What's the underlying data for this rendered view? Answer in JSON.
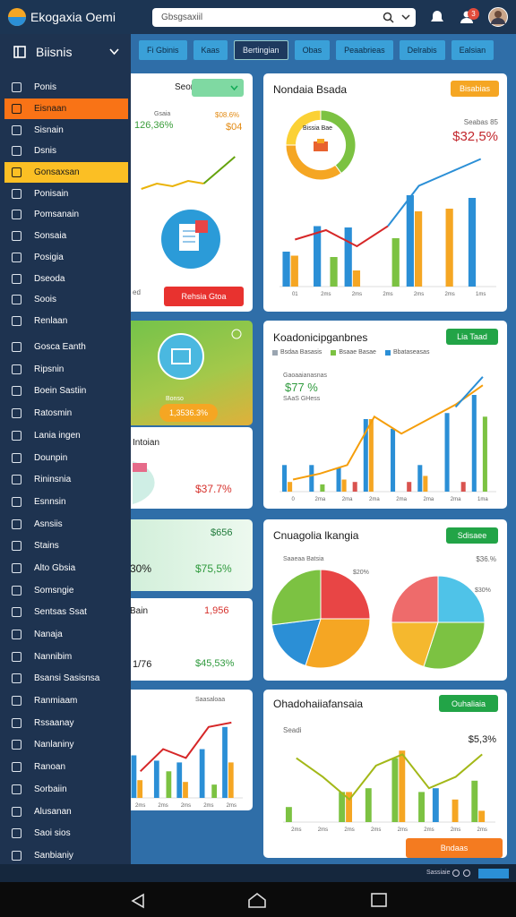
{
  "topbar": {
    "app_name": "Ekogaxia Oemi",
    "search_placeholder": "Gbsgsaxiil",
    "notification_count": 3
  },
  "sidebar": {
    "title": "Biisnis",
    "items": [
      {
        "label": "Ponis",
        "chevron": true
      },
      {
        "label": "Eisnaan",
        "chevron": false,
        "color": "#f97316"
      },
      {
        "label": "Sisnain",
        "chevron": true
      },
      {
        "label": "Dsnis",
        "chevron": false
      },
      {
        "label": "Gonsaxsan",
        "chevron": false,
        "color": "#fbbf24"
      },
      {
        "label": "Ponisain",
        "chevron": false
      },
      {
        "label": "Pomsanain",
        "chevron": false
      },
      {
        "label": "Sonsaia",
        "chevron": true
      },
      {
        "label": "Posigia",
        "chevron": true
      },
      {
        "label": "Dseoda",
        "chevron": false
      },
      {
        "label": "Soois",
        "chevron": true
      },
      {
        "label": "Renlaan",
        "chevron": true
      },
      {
        "label": "Gosca Eanth",
        "chevron": true
      },
      {
        "label": "Ripsnin",
        "chevron": true
      },
      {
        "label": "Boein Sastiin",
        "chevron": true
      },
      {
        "label": "Ratosmin",
        "chevron": false
      },
      {
        "label": "Lania ingen",
        "chevron": false
      },
      {
        "label": "Dounpin",
        "chevron": false
      },
      {
        "label": "Rininsnia",
        "chevron": false
      },
      {
        "label": "Esnnsin",
        "chevron": false
      },
      {
        "label": "Asnsiis",
        "chevron": false
      },
      {
        "label": "Stains",
        "chevron": false
      },
      {
        "label": "Alto Gbsia",
        "chevron": false
      },
      {
        "label": "Somsngie",
        "chevron": false
      },
      {
        "label": "Sentsas Ssat",
        "chevron": false
      },
      {
        "label": "Nanaja",
        "chevron": false
      },
      {
        "label": "Nannibim",
        "chevron": false
      },
      {
        "label": "Bsansi Sasisnsa",
        "chevron": false
      },
      {
        "label": "Ranmiaam",
        "chevron": false
      },
      {
        "label": "Rssaanay",
        "chevron": false
      },
      {
        "label": "Nanlaniny",
        "chevron": false
      },
      {
        "label": "Ranoan",
        "chevron": false
      },
      {
        "label": "Sorbaiin",
        "chevron": false
      },
      {
        "label": "Alusanan",
        "chevron": false
      },
      {
        "label": "Saoi sios",
        "chevron": false
      },
      {
        "label": "Sanbianiy",
        "chevron": false
      }
    ]
  },
  "tabs": [
    {
      "label": "Fi Gbinis",
      "active": false
    },
    {
      "label": "Kaas",
      "active": false
    },
    {
      "label": "Bertingian",
      "active": true
    },
    {
      "label": "Obas",
      "active": false
    },
    {
      "label": "Peaabrieas",
      "active": false
    },
    {
      "label": "Delrabis",
      "active": false
    },
    {
      "label": "Ealsian",
      "active": false
    }
  ],
  "left_cards": [
    {
      "title": "Seonsai",
      "label_a": "Gsaia",
      "value_a": "126,36%",
      "label_b": "$08.6%",
      "value_b": "$04",
      "note": "ed",
      "button": "Rehsia Gtoa",
      "chart": {
        "ylim": [
          0,
          100
        ],
        "lines": [
          {
            "color": "#eab308",
            "values": [
              20,
              30,
              25,
              35,
              30,
              null,
              null
            ]
          },
          {
            "color": "#65a30d",
            "values": [
              null,
              null,
              null,
              null,
              30,
              55,
              80
            ]
          }
        ]
      }
    },
    {
      "label": "Bonso",
      "value": "1,3536.3%"
    },
    {
      "title": "Intoian",
      "value": "$37.7%"
    },
    {
      "value_a": "$656",
      "value_b": "30%",
      "value_c": "$75,5%"
    },
    {
      "title": "Bain",
      "value_a": "1,956",
      "value_b": "1/76",
      "value_c": "$45,53%"
    },
    {
      "label": "Saasaloaa",
      "chart": {
        "ylim": [
          0,
          100
        ],
        "categories": [
          "2ms",
          "2ms",
          "2ms",
          "2ms",
          "2ms"
        ],
        "bars": [
          {
            "color": "#2b8fd6",
            "values": [
              48,
              42,
              40,
              55,
              80
            ]
          },
          {
            "color": "#f5a623",
            "values": [
              20,
              null,
              18,
              null,
              40
            ]
          },
          {
            "color": "#7cc242",
            "values": [
              null,
              30,
              null,
              15,
              null
            ]
          }
        ],
        "lines": [
          {
            "color": "#d62728",
            "values": [
              30,
              55,
              45,
              80,
              85
            ]
          }
        ]
      }
    }
  ],
  "right_cards": [
    {
      "title": "Nondaia Bsada",
      "button": "Bisabias",
      "donut_label": "Bissia Bae",
      "label": "Seabas 85",
      "value": "$32,5%",
      "donut": {
        "slices": [
          {
            "color": "#7cc242",
            "value": 40
          },
          {
            "color": "#f5a623",
            "value": 35
          },
          {
            "color": "#fbd135",
            "value": 25
          }
        ]
      },
      "chart": {
        "ylim": [
          0,
          100
        ],
        "categories": [
          "01",
          "2ms",
          "2ms",
          "2ms",
          "2ms",
          "2ms",
          "1ms"
        ],
        "bars": [
          {
            "color": "#2b8fd6",
            "values": [
              26,
              45,
              44,
              null,
              68,
              null,
              66
            ]
          },
          {
            "color": "#f5a623",
            "values": [
              23,
              null,
              12,
              null,
              56,
              58,
              null
            ]
          },
          {
            "color": "#7cc242",
            "values": [
              null,
              22,
              null,
              36,
              null,
              null,
              null
            ]
          }
        ],
        "lines": [
          {
            "color": "#d62728",
            "values": [
              35,
              42,
              30,
              45,
              null,
              null,
              null
            ]
          },
          {
            "color": "#2b8fd6",
            "values": [
              null,
              null,
              null,
              45,
              75,
              85,
              95
            ]
          }
        ]
      }
    },
    {
      "title": "Koadonicipganbnes",
      "button": "Lia Taad",
      "legend": [
        "Bsdaa Basasis",
        "Bsaae Basae",
        "Bbataseasas"
      ],
      "label_a": "Gaoaaianasnas",
      "value": "$77 %",
      "label_b": "SAaS GHess",
      "chart": {
        "ylim": [
          0,
          100
        ],
        "categories": [
          "0",
          "2ma",
          "2ma",
          "2ma",
          "2ma",
          "2ma",
          "2ma",
          "1ma"
        ],
        "bars": [
          {
            "color": "#2b8fd6",
            "values": [
              22,
              22,
              20,
              60,
              52,
              22,
              65,
              80
            ]
          },
          {
            "color": "#f5a623",
            "values": [
              8,
              null,
              10,
              60,
              null,
              13,
              null,
              null
            ]
          },
          {
            "color": "#7cc242",
            "values": [
              null,
              6,
              null,
              null,
              null,
              null,
              null,
              62
            ]
          },
          {
            "color": "#d9534f",
            "values": [
              null,
              null,
              8,
              null,
              8,
              null,
              8,
              null
            ]
          }
        ],
        "lines": [
          {
            "color": "#f59e0b",
            "values": [
              10,
              15,
              22,
              62,
              48,
              60,
              72,
              88
            ]
          },
          {
            "color": "#2b8fd6",
            "values": [
              null,
              null,
              null,
              null,
              null,
              null,
              70,
              95
            ]
          }
        ]
      }
    },
    {
      "title": "Cnuagolia lkangia",
      "button": "Sdisaee",
      "label": "Saaeaa Batsia",
      "value": "$36.%",
      "note_a": "$20%",
      "note_b": "$30%",
      "pies": [
        {
          "slices": [
            {
              "color": "#e84545",
              "value": 25
            },
            {
              "color": "#f5a623",
              "value": 30
            },
            {
              "color": "#2b8fd6",
              "value": 18
            },
            {
              "color": "#7cc242",
              "value": 27
            }
          ]
        },
        {
          "slices": [
            {
              "color": "#4fc3e8",
              "value": 25
            },
            {
              "color": "#7cc242",
              "value": 30
            },
            {
              "color": "#f5b82e",
              "value": 20
            },
            {
              "color": "#ee6b6b",
              "value": 25
            }
          ]
        }
      ]
    },
    {
      "title": "Ohadohaiiafansaia",
      "button": "Ouhaliaia",
      "label": "Seadi",
      "value": "$5,3%",
      "button_b": "Bndaas",
      "chart": {
        "ylim": [
          0,
          100
        ],
        "categories": [
          "2ms",
          "2ms",
          "2ms",
          "2ms",
          "2ms",
          "2ms",
          "2ms",
          "2ms"
        ],
        "bars": [
          {
            "color": "#7cc242",
            "values": [
              20,
              null,
              40,
              45,
              85,
              40,
              null,
              55
            ]
          },
          {
            "color": "#f5a623",
            "values": [
              null,
              null,
              40,
              null,
              95,
              null,
              30,
              15
            ]
          },
          {
            "color": "#2b8fd6",
            "values": [
              null,
              null,
              null,
              null,
              null,
              45,
              null,
              null
            ]
          }
        ],
        "lines": [
          {
            "color": "#a3b818",
            "values": [
              85,
              60,
              30,
              75,
              90,
              45,
              60,
              90
            ]
          }
        ]
      }
    }
  ],
  "status_bar": {
    "text": "Sassiaie"
  }
}
